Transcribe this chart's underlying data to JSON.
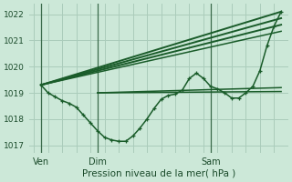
{
  "xlabel": "Pression niveau de la mer( hPa )",
  "background_color": "#cce8d8",
  "grid_color": "#aaccbb",
  "line_color": "#1a5c2a",
  "ylim": [
    1016.7,
    1022.4
  ],
  "xlim": [
    -2,
    108
  ],
  "xtick_labels": [
    "Ven",
    "Dim",
    "Sam"
  ],
  "xtick_positions": [
    3,
    27,
    75
  ],
  "ytick_labels": [
    "1017",
    "1018",
    "1019",
    "1020",
    "1021",
    "1022"
  ],
  "ytick_values": [
    1017,
    1018,
    1019,
    1020,
    1021,
    1022
  ],
  "vline_positions": [
    3,
    27,
    75
  ],
  "series_marker": {
    "x": [
      3,
      6,
      9,
      12,
      15,
      18,
      21,
      24,
      27,
      30,
      33,
      36,
      39,
      42,
      45,
      48,
      51,
      54,
      57,
      60,
      63,
      66,
      69,
      72,
      75,
      78,
      81,
      84,
      87,
      90,
      93,
      96,
      99,
      102,
      105
    ],
    "y": [
      1019.3,
      1019.0,
      1018.85,
      1018.7,
      1018.6,
      1018.45,
      1018.15,
      1017.85,
      1017.55,
      1017.3,
      1017.2,
      1017.15,
      1017.15,
      1017.35,
      1017.65,
      1018.0,
      1018.4,
      1018.75,
      1018.9,
      1018.95,
      1019.1,
      1019.55,
      1019.75,
      1019.55,
      1019.25,
      1019.15,
      1019.0,
      1018.8,
      1018.8,
      1019.0,
      1019.25,
      1019.85,
      1020.8,
      1021.55,
      1022.1
    ]
  },
  "series_straight": [
    {
      "x": [
        3,
        105
      ],
      "y": [
        1019.3,
        1022.1
      ],
      "lw": 1.4
    },
    {
      "x": [
        3,
        105
      ],
      "y": [
        1019.3,
        1021.85
      ],
      "lw": 1.4
    },
    {
      "x": [
        3,
        105
      ],
      "y": [
        1019.3,
        1021.6
      ],
      "lw": 1.4
    },
    {
      "x": [
        3,
        105
      ],
      "y": [
        1019.3,
        1021.35
      ],
      "lw": 1.1
    },
    {
      "x": [
        27,
        105
      ],
      "y": [
        1019.0,
        1019.2
      ],
      "lw": 1.1
    },
    {
      "x": [
        27,
        105
      ],
      "y": [
        1019.0,
        1019.05
      ],
      "lw": 1.1
    }
  ]
}
